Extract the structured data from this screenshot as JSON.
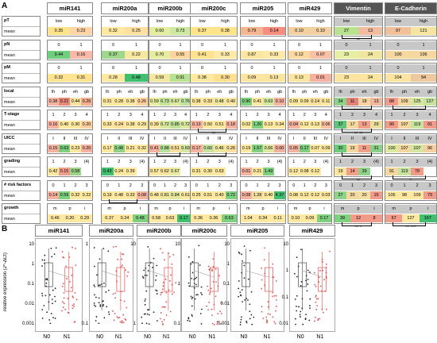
{
  "panel_labels": {
    "a": "A",
    "b": "B"
  },
  "columns": [
    "miR141",
    "miR200a",
    "miR200b",
    "miR200c",
    "miR205",
    "miR429",
    "Vimentin",
    "E-Cadherin"
  ],
  "rows": [
    {
      "label": "pT",
      "mean": "mean",
      "categories": [
        "low",
        "high"
      ],
      "values": [
        [
          "0.35",
          "0.23"
        ],
        [
          "0.32",
          "0.25"
        ],
        [
          "0.60",
          "0.73"
        ],
        [
          "0.37",
          "0.38"
        ],
        [
          "0.79",
          "0.14"
        ],
        [
          "0.10",
          "0.10"
        ],
        [
          "27",
          "13"
        ],
        [
          "97",
          "121"
        ]
      ],
      "colors": [
        [
          "#ffe38a",
          "#ffd4a6"
        ],
        [
          "#ffe9a0",
          "#ffe0a0"
        ],
        [
          "#e3eda0",
          "#cde8a0"
        ],
        [
          "#ffe48c",
          "#ffe48c"
        ],
        [
          "#f5b58e",
          "#f58e80"
        ],
        [
          "#f2d0a0",
          "#f2d0a0"
        ],
        [
          "#b9e28e",
          "#f2bca0"
        ],
        [
          "#f0c09a",
          "#f4e6a0"
        ]
      ],
      "sig": [
        {
          "col": 6,
          "text": "**"
        }
      ]
    },
    {
      "label": "pN",
      "mean": "mean",
      "categories": [
        "0",
        "1"
      ],
      "values": [
        [
          "0.44",
          "0.16"
        ],
        [
          "0.37",
          "0.22"
        ],
        [
          "0.70",
          "0.55"
        ],
        [
          "0.41",
          "0.33"
        ],
        [
          "0.87",
          "0.33"
        ],
        [
          "0.12",
          "0.07"
        ],
        [
          "23",
          "24"
        ],
        [
          "100",
          "106"
        ]
      ],
      "colors": [
        [
          "#6fcf7c",
          "#f8b9a8"
        ],
        [
          "#9fd88c",
          "#f8e7a0"
        ],
        [
          "#e6eda0",
          "#fdd5a0"
        ],
        [
          "#ffe290",
          "#ffe9a8"
        ],
        [
          "#fde7a0",
          "#ffe9a8"
        ],
        [
          "#fad8a0",
          "#f9c0a8"
        ],
        [
          "#e7efa6",
          "#f0e6a0"
        ],
        [
          "#f5d8a0",
          "#f5d8a0"
        ]
      ],
      "sig": []
    },
    {
      "label": "pM",
      "mean": "mean",
      "categories": [
        "0",
        "1"
      ],
      "values": [
        [
          "0.32",
          "0.31"
        ],
        [
          "0.28",
          "0.48"
        ],
        [
          "0.59",
          "0.91"
        ],
        [
          "0.38",
          "0.30"
        ],
        [
          "0.09",
          "0.13"
        ],
        [
          "0.13",
          "0.01"
        ],
        [
          "23",
          "24"
        ],
        [
          "104",
          "94"
        ]
      ],
      "colors": [
        [
          "#ffe390",
          "#ffe390"
        ],
        [
          "#ffe8a0",
          "#3fbf6f"
        ],
        [
          "#f3e8a0",
          "#b8e292"
        ],
        [
          "#ffe8a0",
          "#ffe090"
        ],
        [
          "#fbe5a0",
          "#fbe5a0"
        ],
        [
          "#fbe5a0",
          "#f5b0a0"
        ],
        [
          "#fbe5a0",
          "#fbe5a0"
        ],
        [
          "#fbe5a0",
          "#f0c8a0"
        ]
      ],
      "sig": []
    },
    {
      "label": "local",
      "mean": "mean",
      "categories": [
        "lh",
        "ph",
        "eh",
        "gb"
      ],
      "values": [
        [
          "0.38",
          "0.21",
          "0.44",
          "0.26"
        ],
        [
          "0.31",
          "0.28",
          "0.38",
          "0.26"
        ],
        [
          "0.59",
          "0.73",
          "0.67",
          "0.76"
        ],
        [
          "0.38",
          "0.33",
          "0.48",
          "0.40"
        ],
        [
          "0.90",
          "0.41",
          "0.63",
          "0.10"
        ],
        [
          "0.09",
          "0.09",
          "0.14",
          "0.11"
        ],
        [
          "34",
          "11",
          "18",
          "13"
        ],
        [
          "88",
          "109",
          "125",
          "127"
        ]
      ],
      "colors": [
        [
          "#f8b4a0",
          "#e7897a",
          "#ffe3a0",
          "#f5b090"
        ],
        [
          "#ffe8a0",
          "#ffe8a0",
          "#ffe8a0",
          "#ffd0a0"
        ],
        [
          "#e8eda0",
          "#c6e59a",
          "#ddeaa0",
          "#c0e3a0"
        ],
        [
          "#ffe6a0",
          "#ffe6a0",
          "#f0e8a0",
          "#fce8a0"
        ],
        [
          "#7fd180",
          "#ffe8a0",
          "#d3e8a0",
          "#f5b3a0"
        ],
        [
          "#ffe8a0",
          "#ffe8a0",
          "#fbe0a0",
          "#ffe8a0"
        ],
        [
          "#8fd38a",
          "#e2837a",
          "#f8d4a0",
          "#f1b8a0"
        ],
        [
          "#f39b8a",
          "#f5d8a0",
          "#d7e8a0",
          "#c8e4a0"
        ]
      ],
      "sig": [
        {
          "col": 6,
          "text": "** **"
        },
        {
          "col": 7,
          "text": "*"
        }
      ]
    },
    {
      "label": "T-stage",
      "mean": "mean",
      "categories": [
        "1",
        "2",
        "3",
        "4"
      ],
      "values": [
        [
          "0.16",
          "0.40",
          "0.30",
          "0.20"
        ],
        [
          "0.33",
          "0.24",
          "0.38",
          "0.29"
        ],
        [
          "0.39",
          "0.72",
          "0.85",
          "0.72"
        ],
        [
          "0.13",
          "0.50",
          "0.51",
          "0.18"
        ],
        [
          "0.02",
          "1.20",
          "0.13",
          "0.34"
        ],
        [
          "0.04",
          "0.12",
          "0.13",
          "0.06"
        ],
        [
          "37",
          "17",
          "13",
          "29"
        ],
        [
          "90",
          "107",
          "119",
          "91"
        ]
      ],
      "colors": [
        [
          "#f5b2a0",
          "#ffe8a0",
          "#ffe8a0",
          "#ffd0a0"
        ],
        [
          "#ffe8a0",
          "#ffe0a0",
          "#ffe8a0",
          "#ffe8a0"
        ],
        [
          "#fbe6a0",
          "#dbe9a0",
          "#bfe39a",
          "#dbe9a0"
        ],
        [
          "#f5b3a0",
          "#ffe8a0",
          "#ffe8a0",
          "#f5b3a0"
        ],
        [
          "#ffe8a0",
          "#7fd180",
          "#ffe8a0",
          "#ffe8a0"
        ],
        [
          "#f5b3a0",
          "#ffe8a0",
          "#ffe8a0",
          "#f8c0a0"
        ],
        [
          "#60c57a",
          "#f5d8a0",
          "#f3a08a",
          "#eadf9e"
        ],
        [
          "#f39b8a",
          "#f5d8a0",
          "#c6e4a0",
          "#f39b8a"
        ]
      ],
      "sig": [
        {
          "col": 3,
          "text": "**"
        },
        {
          "col": 6,
          "text": "** **"
        }
      ]
    },
    {
      "label": "UICC",
      "mean": "mean",
      "categories": [
        "I",
        "II",
        "III",
        "IV"
      ],
      "values": [
        [
          "0.15",
          "0.63",
          "0.23",
          "0.20"
        ],
        [
          "0.17",
          "0.48",
          "0.21",
          "0.32"
        ],
        [
          "0.41",
          "0.88",
          "0.51",
          "0.69"
        ],
        [
          "0.17",
          "0.60",
          "0.46",
          "0.26"
        ],
        [
          "0.19",
          "1.57",
          "0.66",
          "0.00"
        ],
        [
          "0.05",
          "0.17",
          "0.07",
          "0.09"
        ],
        [
          "30",
          "19",
          "11",
          "31"
        ],
        [
          "100",
          "107",
          "107",
          "96"
        ]
      ],
      "colors": [
        [
          "#f5b2a0",
          "#7ecf80",
          "#ffe8a0",
          "#f5b2a0"
        ],
        [
          "#ffe8a0",
          "#8fd38a",
          "#ffe8a0",
          "#ffe8a0"
        ],
        [
          "#f5b2a0",
          "#b5e19a",
          "#fbe0a0",
          "#d6e8a0"
        ],
        [
          "#f5b2a0",
          "#c8e4a0",
          "#f0e6a0",
          "#fbe0a0"
        ],
        [
          "#ffe8a0",
          "#7fd180",
          "#e0e8a0",
          "#f5b2a0"
        ],
        [
          "#f5b2a0",
          "#7ecf80",
          "#ffe8a0",
          "#ffe8a0"
        ],
        [
          "#6fcb7c",
          "#f5d8a0",
          "#f3a08a",
          "#8cd08a"
        ],
        [
          "#ddeaa0",
          "#f5d8a0",
          "#d3e8a0",
          "#f6d0a0"
        ]
      ],
      "sig": [
        {
          "col": 2,
          "text": "*"
        },
        {
          "col": 3,
          "text": "*"
        },
        {
          "col": 6,
          "text": "* *"
        }
      ]
    },
    {
      "label": "grading",
      "mean": "mean",
      "categories": [
        "1",
        "2",
        "3",
        "(4)"
      ],
      "values": [
        [
          "0.42",
          "0.15",
          "0.58",
          ""
        ],
        [
          "0.43",
          "0.24",
          "0.39",
          ""
        ],
        [
          "0.57",
          "0.62",
          "0.67",
          ""
        ],
        [
          "0.31",
          "0.30",
          "0.63",
          ""
        ],
        [
          "0.01",
          "0.21",
          "1.43",
          ""
        ],
        [
          "0.12",
          "0.08",
          "0.12",
          ""
        ],
        [
          "19",
          "14",
          "39",
          ""
        ],
        [
          "91",
          "119",
          "78",
          ""
        ]
      ],
      "colors": [
        [
          "#ffe8a0",
          "#f39b8a",
          "#9ed48a",
          "#fff"
        ],
        [
          "#3fbf6f",
          "#ffe8a0",
          "#ffe8a0",
          "#fff"
        ],
        [
          "#ffe8a0",
          "#fbe6a0",
          "#e9eba0",
          "#fff"
        ],
        [
          "#ffe8a0",
          "#ffe8a0",
          "#ffe8a0",
          "#fff"
        ],
        [
          "#f5b3a0",
          "#ffe8a0",
          "#7fd180",
          "#fff"
        ],
        [
          "#ffe8a0",
          "#ffe8a0",
          "#ffe8a0",
          "#fff"
        ],
        [
          "#fbe6a0",
          "#f3a08a",
          "#8fd38a",
          "#fff"
        ],
        [
          "#f5d8a0",
          "#c6e4a0",
          "#f39b8a",
          "#fff"
        ]
      ],
      "sig": [
        {
          "col": 6,
          "text": "**"
        },
        {
          "col": 7,
          "text": "*"
        }
      ]
    },
    {
      "label": "# risk factors",
      "mean": "mean",
      "categories": [
        "0",
        "1",
        "2",
        "3"
      ],
      "values": [
        [
          "0.14",
          "0.59",
          "0.32",
          "0.22"
        ],
        [
          "0.19",
          "0.48",
          "0.33",
          "0.08"
        ],
        [
          "0.48",
          "0.81",
          "0.84",
          "0.61"
        ],
        [
          "0.25",
          "0.51",
          "0.40",
          "0.72"
        ],
        [
          "0.08",
          "1.28",
          "0.40",
          "4.37"
        ],
        [
          "0.08",
          "0.12",
          "0.12",
          "0.03"
        ],
        [
          "27",
          "20",
          "20",
          "15"
        ],
        [
          "105",
          "98",
          "109",
          "79"
        ]
      ],
      "colors": [
        [
          "#f5b3a0",
          "#7fd180",
          "#ffe8a0",
          "#ffe8a0"
        ],
        [
          "#ffe8a0",
          "#ffe8a0",
          "#ffe8a0",
          "#f5b3a0"
        ],
        [
          "#ffe8a0",
          "#f1e8a0",
          "#e3eaa0",
          "#ffe8a0"
        ],
        [
          "#ffe8a0",
          "#ffe8a0",
          "#ffe8a0",
          "#7fd180"
        ],
        [
          "#f5b3a0",
          "#f3e0a0",
          "#ffe8a0",
          "#3fbf6f"
        ],
        [
          "#ffe8a0",
          "#ffe8a0",
          "#ffe8a0",
          "#ffe8a0"
        ],
        [
          "#8fd38a",
          "#f5d8a0",
          "#f3e0a0",
          "#f39b8a"
        ],
        [
          "#ffe8a0",
          "#ffe8a0",
          "#ffe8a0",
          "#f39b8a"
        ]
      ],
      "sig": [
        {
          "col": 1,
          "text": "*"
        }
      ]
    },
    {
      "label": "growth",
      "mean": "mean",
      "categories": [
        "m",
        "p",
        "i"
      ],
      "values": [
        [
          "0.46",
          "0.20",
          "0.29"
        ],
        [
          "0.37",
          "0.24",
          "0.48"
        ],
        [
          "0.58",
          "0.63",
          "0.17"
        ],
        [
          "0.36",
          "0.36",
          "0.63"
        ],
        [
          "1.04",
          "0.34",
          "0.11"
        ],
        [
          "0.10",
          "0.09",
          "0.17"
        ],
        [
          "39",
          "12",
          "8"
        ],
        [
          "67",
          "127",
          "167"
        ]
      ],
      "colors": [
        [
          "#ffe8a0",
          "#ffe8a0",
          "#ffe8a0"
        ],
        [
          "#ffe8a0",
          "#ffe8a0",
          "#7fd180"
        ],
        [
          "#ffe8a0",
          "#ffe8a0",
          "#3fbf6f"
        ],
        [
          "#ffe8a0",
          "#ffe8a0",
          "#7fd180"
        ],
        [
          "#ffe8a0",
          "#ffe8a0",
          "#ffe8a0"
        ],
        [
          "#ffe8a0",
          "#ffe8a0",
          "#7fd180"
        ],
        [
          "#7fd180",
          "#f39b8a",
          "#f39b8a"
        ],
        [
          "#f39b8a",
          "#ffe8a0",
          "#3fbf6f"
        ]
      ],
      "sig": [
        {
          "col": 6,
          "text": "** *"
        },
        {
          "col": 7,
          "text": "** ***"
        }
      ]
    }
  ],
  "panel_b": {
    "ylabel": "relative expression (2^-ΔCt)",
    "xcats": [
      "N0",
      "N1"
    ],
    "plots": [
      {
        "title": "miR141",
        "yticks": [
          "10",
          "1",
          "0.1",
          "0.01",
          "0.001"
        ]
      },
      {
        "title": "miR200a",
        "yticks": [
          "1",
          "0.1"
        ]
      },
      {
        "title": "miR200b",
        "yticks": [
          "10",
          "1"
        ]
      },
      {
        "title": "miR200c",
        "yticks": [
          "10",
          "1",
          "0.1"
        ]
      },
      {
        "title": "miR205",
        "yticks": [
          "10",
          "1",
          "0.1",
          "0.01",
          "0.001"
        ]
      },
      {
        "title": "miR429",
        "yticks": [
          "10",
          "1",
          "0.1",
          "0.01"
        ]
      }
    ]
  }
}
